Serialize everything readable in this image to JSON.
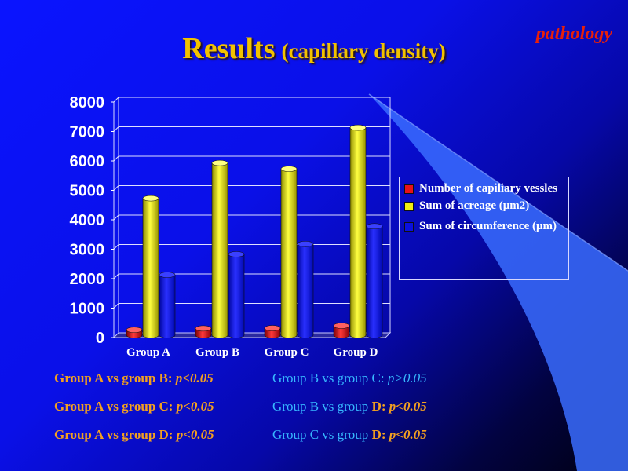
{
  "slide": {
    "tag": "pathology",
    "title": "Results",
    "subtitle": "(capillary density)"
  },
  "colors": {
    "series_red": "#e8121a",
    "series_yellow": "#f2ee10",
    "series_blue": "#0a10e0",
    "title": "#f2c200",
    "orange_text": "#f2a020",
    "cyan_text": "#37b8ff"
  },
  "chart_data": {
    "type": "bar",
    "categories": [
      "Group A",
      "Group B",
      "Group C",
      "Group D"
    ],
    "series": [
      {
        "name": "Number of capiliary vessles",
        "values": [
          180,
          230,
          240,
          320
        ]
      },
      {
        "name": "Sum of acreage (μm2)",
        "values": [
          4650,
          5850,
          5650,
          7050
        ]
      },
      {
        "name": "Sum of circumference (μm)",
        "values": [
          2050,
          2750,
          3100,
          3700
        ]
      }
    ],
    "ylim": [
      0,
      8000
    ],
    "yticks": [
      "0",
      "1000",
      "2000",
      "3000",
      "4000",
      "5000",
      "6000",
      "7000",
      "8000"
    ],
    "grid": true,
    "legend_position": "right",
    "style": "3d-cylinder"
  },
  "comparisons": [
    {
      "left": {
        "label": "Group A vs group B:",
        "p": "p<0.05"
      },
      "right": {
        "label": "Group B vs group C:",
        "p": "p>0.05"
      }
    },
    {
      "left": {
        "label": "Group A vs group C:",
        "p": "p<0.05"
      },
      "right": {
        "label_cyan": "Group B vs group ",
        "label_orange": "D:",
        "p": "p<0.05"
      }
    },
    {
      "left": {
        "label": "Group A vs group D:",
        "p": "p<0.05"
      },
      "right": {
        "label_cyan": "Group C vs group ",
        "label_orange": "D:",
        "p": "p<0.05"
      }
    }
  ]
}
